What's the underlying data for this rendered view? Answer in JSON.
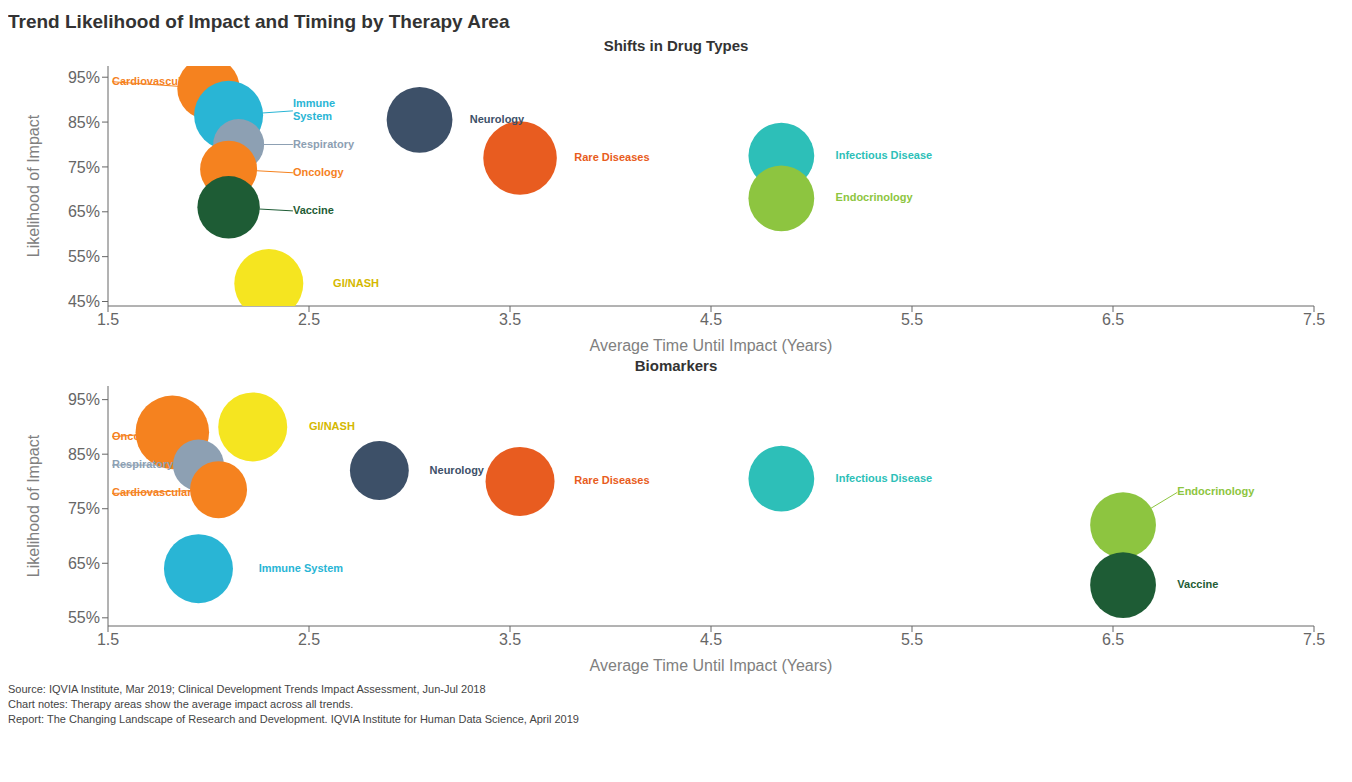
{
  "title": "Trend Likelihood of Impact and Timing by Therapy Area",
  "footnotes": [
    "Source: IQVIA Institute, Mar 2019; Clinical Development Trends Impact Assessment, Jun-Jul 2018",
    "Chart notes: Therapy areas show the average impact across all trends.",
    "Report: The Changing Landscape of Research and Development. IQVIA Institute for Human Data Science, April 2019"
  ],
  "chart_data": [
    {
      "type": "scatter",
      "title": "Shifts in Drug Types",
      "xlabel": "Average Time Until Impact (Years)",
      "ylabel": "Likelihood of Impact",
      "xlim": [
        1.5,
        7.5
      ],
      "xticks": [
        1.5,
        2.5,
        3.5,
        4.5,
        5.5,
        6.5,
        7.5
      ],
      "ylim": [
        0.44,
        0.975
      ],
      "yticks": [
        {
          "value": 0.45,
          "label": "45%"
        },
        {
          "value": 0.55,
          "label": "55%"
        },
        {
          "value": 0.65,
          "label": "65%"
        },
        {
          "value": 0.75,
          "label": "75%"
        },
        {
          "value": 0.85,
          "label": "85%"
        },
        {
          "value": 0.95,
          "label": "95%"
        }
      ],
      "points": [
        {
          "x": 2.0,
          "y": 0.925,
          "size": 1800,
          "color": "#f5821f"
        },
        {
          "x": 2.1,
          "y": 0.865,
          "size": 2200,
          "color": "#29b5d5"
        },
        {
          "x": 2.15,
          "y": 0.8,
          "size": 1200,
          "color": "#8da0b3"
        },
        {
          "x": 2.1,
          "y": 0.745,
          "size": 1500,
          "color": "#f5821f"
        },
        {
          "x": 2.1,
          "y": 0.66,
          "size": 1800,
          "color": "#1e5c35"
        },
        {
          "x": 2.3,
          "y": 0.49,
          "size": 2200,
          "color": "#f5e520"
        },
        {
          "x": 3.05,
          "y": 0.855,
          "size": 2000,
          "color": "#3d5068"
        },
        {
          "x": 3.55,
          "y": 0.77,
          "size": 2500,
          "color": "#e85c20"
        },
        {
          "x": 4.85,
          "y": 0.775,
          "size": 2000,
          "color": "#2dbfb8"
        },
        {
          "x": 4.85,
          "y": 0.68,
          "size": 2000,
          "color": "#8dc540"
        }
      ],
      "annotations": [
        {
          "text": "Cardiovascular",
          "x": 2.0,
          "y": 0.925,
          "text_x": 1.52,
          "text_y": 0.94,
          "color": "#f5821f",
          "line": true
        },
        {
          "text": "Immune\nSystem",
          "x": 2.1,
          "y": 0.865,
          "text_x": 2.42,
          "text_y": 0.875,
          "color": "#29b5d5",
          "line": true
        },
        {
          "text": "Respiratory",
          "x": 2.15,
          "y": 0.8,
          "text_x": 2.42,
          "text_y": 0.8,
          "color": "#8da0b3",
          "line": true
        },
        {
          "text": "Oncology",
          "x": 2.1,
          "y": 0.745,
          "text_x": 2.42,
          "text_y": 0.737,
          "color": "#f5821f",
          "line": true
        },
        {
          "text": "Vaccine",
          "x": 2.1,
          "y": 0.66,
          "text_x": 2.42,
          "text_y": 0.652,
          "color": "#1e5c35",
          "line": true
        },
        {
          "text": "GI/NASH",
          "x": 2.3,
          "y": 0.49,
          "text_x": 2.62,
          "text_y": 0.49,
          "color": "#d4b800",
          "line": false
        },
        {
          "text": "Neurology",
          "x": 3.05,
          "y": 0.855,
          "text_x": 3.3,
          "text_y": 0.855,
          "color": "#3d5068",
          "line": false
        },
        {
          "text": "Rare Diseases",
          "x": 3.55,
          "y": 0.77,
          "text_x": 3.82,
          "text_y": 0.77,
          "color": "#e85c20",
          "line": false
        },
        {
          "text": "Infectious Disease",
          "x": 4.85,
          "y": 0.775,
          "text_x": 5.12,
          "text_y": 0.775,
          "color": "#2dbfb8",
          "line": false
        },
        {
          "text": "Endocrinology",
          "x": 4.85,
          "y": 0.68,
          "text_x": 5.12,
          "text_y": 0.68,
          "color": "#8dc540",
          "line": false
        }
      ]
    },
    {
      "type": "scatter",
      "title": "Biomarkers",
      "xlabel": "Average Time Until Impact (Years)",
      "ylabel": "Likelihood of Impact",
      "xlim": [
        1.5,
        7.5
      ],
      "xticks": [
        1.5,
        2.5,
        3.5,
        4.5,
        5.5,
        6.5,
        7.5
      ],
      "ylim": [
        0.535,
        0.975
      ],
      "yticks": [
        {
          "value": 0.55,
          "label": "55%"
        },
        {
          "value": 0.65,
          "label": "65%"
        },
        {
          "value": 0.75,
          "label": "75%"
        },
        {
          "value": 0.85,
          "label": "85%"
        },
        {
          "value": 0.95,
          "label": "95%"
        }
      ],
      "points": [
        {
          "x": 1.82,
          "y": 0.89,
          "size": 2500,
          "color": "#f5821f"
        },
        {
          "x": 2.22,
          "y": 0.9,
          "size": 2200,
          "color": "#f5e520"
        },
        {
          "x": 1.95,
          "y": 0.83,
          "size": 1200,
          "color": "#8da0b3"
        },
        {
          "x": 2.05,
          "y": 0.785,
          "size": 1500,
          "color": "#f5821f"
        },
        {
          "x": 1.95,
          "y": 0.64,
          "size": 2200,
          "color": "#29b5d5"
        },
        {
          "x": 2.85,
          "y": 0.82,
          "size": 1600,
          "color": "#3d5068"
        },
        {
          "x": 3.55,
          "y": 0.8,
          "size": 2200,
          "color": "#e85c20"
        },
        {
          "x": 4.85,
          "y": 0.805,
          "size": 2000,
          "color": "#2dbfb8"
        },
        {
          "x": 6.55,
          "y": 0.72,
          "size": 2000,
          "color": "#8dc540"
        },
        {
          "x": 6.55,
          "y": 0.61,
          "size": 2000,
          "color": "#1e5c35"
        }
      ],
      "annotations": [
        {
          "text": "Oncology",
          "x": 1.82,
          "y": 0.89,
          "text_x": 1.52,
          "text_y": 0.882,
          "color": "#f5821f",
          "line": true
        },
        {
          "text": "GI/NASH",
          "x": 2.22,
          "y": 0.9,
          "text_x": 2.5,
          "text_y": 0.9,
          "color": "#d4b800",
          "line": false
        },
        {
          "text": "Respiratory",
          "x": 1.95,
          "y": 0.83,
          "text_x": 1.52,
          "text_y": 0.83,
          "color": "#8da0b3",
          "line": true
        },
        {
          "text": "Cardiovascular",
          "x": 2.05,
          "y": 0.785,
          "text_x": 1.52,
          "text_y": 0.778,
          "color": "#f5821f",
          "line": true
        },
        {
          "text": "Immune System",
          "x": 1.95,
          "y": 0.64,
          "text_x": 2.25,
          "text_y": 0.64,
          "color": "#29b5d5",
          "line": false
        },
        {
          "text": "Neurology",
          "x": 2.85,
          "y": 0.82,
          "text_x": 3.1,
          "text_y": 0.82,
          "color": "#3d5068",
          "line": false
        },
        {
          "text": "Rare Diseases",
          "x": 3.55,
          "y": 0.8,
          "text_x": 3.82,
          "text_y": 0.8,
          "color": "#e85c20",
          "line": false
        },
        {
          "text": "Infectious Disease",
          "x": 4.85,
          "y": 0.805,
          "text_x": 5.12,
          "text_y": 0.805,
          "color": "#2dbfb8",
          "line": false
        },
        {
          "text": "Endocrinology",
          "x": 6.55,
          "y": 0.72,
          "text_x": 6.82,
          "text_y": 0.78,
          "color": "#8dc540",
          "line": true
        },
        {
          "text": "Vaccine",
          "x": 6.55,
          "y": 0.61,
          "text_x": 6.82,
          "text_y": 0.61,
          "color": "#1e5c35",
          "line": false
        }
      ]
    }
  ]
}
